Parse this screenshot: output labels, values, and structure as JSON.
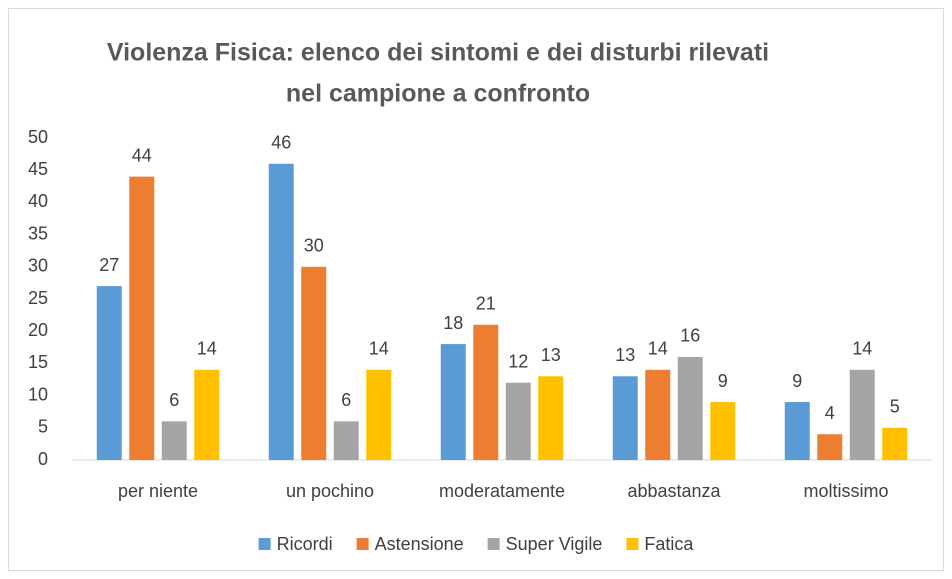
{
  "chart_data": {
    "type": "bar",
    "title": [
      "Violenza Fisica: elenco dei sintomi e dei disturbi rilevati",
      "nel campione a confronto"
    ],
    "categories": [
      "per niente",
      "un pochino",
      "moderatamente",
      "abbastanza",
      "moltissimo"
    ],
    "series": [
      {
        "name": "Ricordi",
        "color": "#5b9bd5",
        "values": [
          27,
          46,
          18,
          13,
          9
        ]
      },
      {
        "name": "Astensione",
        "color": "#ed7d31",
        "values": [
          44,
          30,
          21,
          14,
          4
        ]
      },
      {
        "name": "Super Vigile",
        "color": "#a5a5a5",
        "values": [
          6,
          6,
          12,
          16,
          14
        ]
      },
      {
        "name": "Fatica",
        "color": "#ffc000",
        "values": [
          14,
          14,
          13,
          9,
          5
        ]
      }
    ],
    "ylim": [
      0,
      50
    ],
    "yticks": [
      0,
      5,
      10,
      15,
      20,
      25,
      30,
      35,
      40,
      45,
      50
    ],
    "grid": false,
    "legend": "bottom"
  }
}
